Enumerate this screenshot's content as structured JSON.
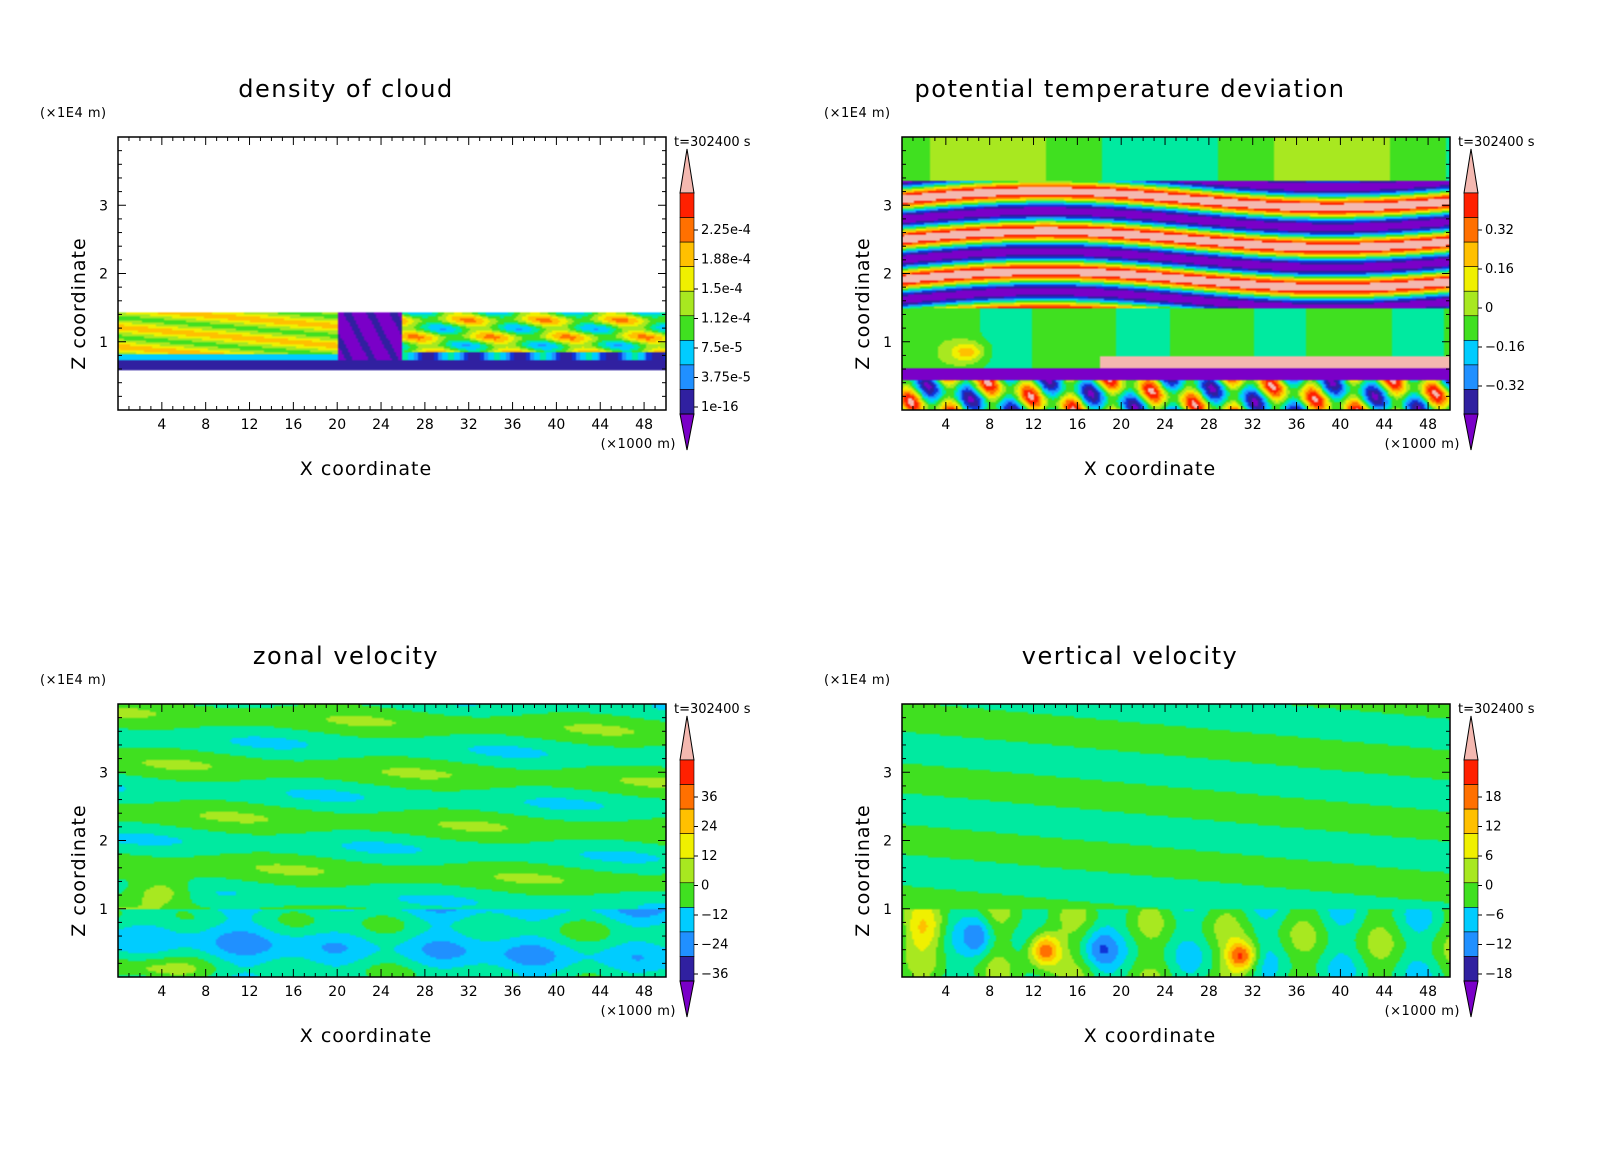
{
  "chart_data": [
    {
      "type": "heatmap",
      "title": "density of cloud",
      "xlabel": "X coordinate",
      "ylabel": "Z coordinate",
      "x_unit": "(×1000 m)",
      "y_unit": "(×1E4 m)",
      "time_label": "t=302400 s",
      "xlim": [
        0,
        50
      ],
      "ylim": [
        0,
        4
      ],
      "x_ticks": [
        4,
        8,
        12,
        16,
        20,
        24,
        28,
        32,
        36,
        40,
        44,
        48
      ],
      "y_ticks": [
        1,
        2,
        3
      ],
      "colorbar_labels": [
        "2.25e-4",
        "1.88e-4",
        "1.5e-4",
        "1.12e-4",
        "7.5e-5",
        "3.75e-5",
        "1e-16"
      ],
      "field": "cloud"
    },
    {
      "type": "heatmap",
      "title": "potential temperature deviation",
      "xlabel": "X coordinate",
      "ylabel": "Z coordinate",
      "x_unit": "(×1000 m)",
      "y_unit": "(×1E4 m)",
      "time_label": "t=302400 s",
      "xlim": [
        0,
        50
      ],
      "ylim": [
        0,
        4
      ],
      "x_ticks": [
        4,
        8,
        12,
        16,
        20,
        24,
        28,
        32,
        36,
        40,
        44,
        48
      ],
      "y_ticks": [
        1,
        2,
        3
      ],
      "colorbar_labels": [
        "0.32",
        "0.16",
        "0",
        "−0.16",
        "−0.32"
      ],
      "field": "theta"
    },
    {
      "type": "heatmap",
      "title": "zonal velocity",
      "xlabel": "X coordinate",
      "ylabel": "Z coordinate",
      "x_unit": "(×1000 m)",
      "y_unit": "(×1E4 m)",
      "time_label": "t=302400 s",
      "xlim": [
        0,
        50
      ],
      "ylim": [
        0,
        4
      ],
      "x_ticks": [
        4,
        8,
        12,
        16,
        20,
        24,
        28,
        32,
        36,
        40,
        44,
        48
      ],
      "y_ticks": [
        1,
        2,
        3
      ],
      "colorbar_labels": [
        "36",
        "24",
        "12",
        "0",
        "−12",
        "−24",
        "−36"
      ],
      "field": "u"
    },
    {
      "type": "heatmap",
      "title": "vertical velocity",
      "xlabel": "X coordinate",
      "ylabel": "Z coordinate",
      "x_unit": "(×1000 m)",
      "y_unit": "(×1E4 m)",
      "time_label": "t=302400 s",
      "xlim": [
        0,
        50
      ],
      "ylim": [
        0,
        4
      ],
      "x_ticks": [
        4,
        8,
        12,
        16,
        20,
        24,
        28,
        32,
        36,
        40,
        44,
        48
      ],
      "y_ticks": [
        1,
        2,
        3
      ],
      "colorbar_labels": [
        "18",
        "12",
        "6",
        "0",
        "−6",
        "−12",
        "−18"
      ],
      "field": "w"
    }
  ],
  "colorbar_colors": [
    "#7a00c8",
    "#3020a0",
    "#1034d8",
    "#2090ff",
    "#00ccff",
    "#00eaa0",
    "#40e020",
    "#a8e820",
    "#f0f000",
    "#ffc000",
    "#ff7000",
    "#ff2000",
    "#f4b8b0"
  ]
}
